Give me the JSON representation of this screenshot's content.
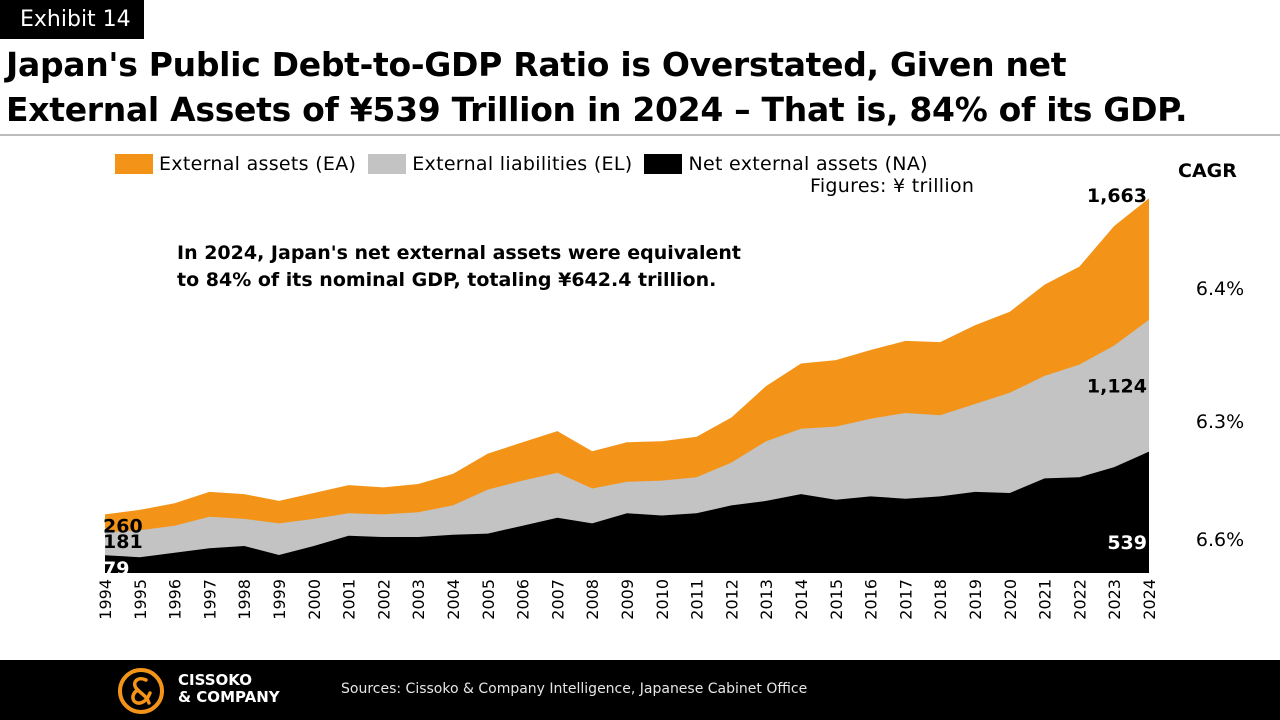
{
  "exhibit": "Exhibit 14",
  "title_line1": "Japan's Public Debt-to-GDP Ratio is Overstated, Given net",
  "title_line2": "External Assets of ¥539 Trillion in 2024 – That is, 84% of its GDP.",
  "annotation_line1": "In 2024, Japan's net external assets were equivalent",
  "annotation_line2": "to 84% of its nominal GDP, totaling ¥642.4 trillion.",
  "units": "Figures: ¥ trillion",
  "cagr": {
    "header": "CAGR",
    "ea": "6.4%",
    "el": "6.3%",
    "na": "6.6%"
  },
  "colors": {
    "ea": "#f39418",
    "el": "#c3c3c3",
    "na": "#000000"
  },
  "footer": {
    "logo_line1": "CISSOKO",
    "logo_line2": "& COMPANY",
    "sources": "Sources: Cissoko & Company Intelligence, Japanese Cabinet Office"
  },
  "chart_data": {
    "type": "area",
    "stacked": false,
    "legend": "top",
    "x": [
      "1994",
      "1995",
      "1996",
      "1997",
      "1998",
      "1999",
      "2000",
      "2001",
      "2002",
      "2003",
      "2004",
      "2005",
      "2006",
      "2007",
      "2008",
      "2009",
      "2010",
      "2011",
      "2012",
      "2013",
      "2014",
      "2015",
      "2016",
      "2017",
      "2018",
      "2019",
      "2020",
      "2021",
      "2022",
      "2023",
      "2024"
    ],
    "series": [
      {
        "name": "External assets (EA)",
        "key": "ea",
        "values": [
          260,
          280,
          310,
          360,
          350,
          320,
          355,
          390,
          380,
          395,
          440,
          530,
          580,
          630,
          540,
          580,
          585,
          605,
          690,
          830,
          930,
          945,
          990,
          1030,
          1025,
          1100,
          1160,
          1280,
          1360,
          1540,
          1663
        ]
      },
      {
        "name": "External liabilities (EL)",
        "key": "el",
        "values": [
          181,
          190,
          210,
          250,
          240,
          220,
          240,
          265,
          260,
          270,
          300,
          370,
          410,
          445,
          375,
          405,
          410,
          425,
          490,
          585,
          640,
          650,
          685,
          710,
          700,
          750,
          800,
          875,
          925,
          1010,
          1124
        ]
      },
      {
        "name": "Net external assets (NA)",
        "key": "na",
        "values": [
          79,
          70,
          90,
          110,
          120,
          80,
          120,
          165,
          160,
          160,
          170,
          175,
          210,
          245,
          220,
          265,
          255,
          265,
          300,
          320,
          350,
          325,
          340,
          330,
          340,
          360,
          355,
          420,
          425,
          470,
          539
        ]
      }
    ],
    "point_labels": [
      {
        "series": "ea",
        "x": "1994",
        "label": "260"
      },
      {
        "series": "el",
        "x": "1994",
        "label": "181"
      },
      {
        "series": "na",
        "x": "1994",
        "label": "79"
      },
      {
        "series": "ea",
        "x": "2024",
        "label": "1,663"
      },
      {
        "series": "el",
        "x": "2024",
        "label": "1,124"
      },
      {
        "series": "na",
        "x": "2024",
        "label": "539"
      }
    ],
    "ylim": [
      0,
      1700
    ],
    "grid": false
  }
}
